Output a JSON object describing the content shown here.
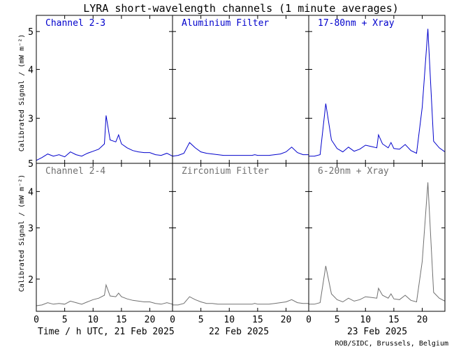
{
  "title": "LYRA short-wavelength channels (1 minute averages)",
  "xlabel": "Time / h UTC, 21 Feb 2025",
  "date_labels": [
    "22 Feb 2025",
    "23 Feb 2025"
  ],
  "ylabel_top": "Calibrated Signal / (mW m⁻²)",
  "ylabel_bottom": "Calibrated Signal / (mW m⁻²)",
  "credit": "ROB/SIDC, Brussels, Belgium",
  "colors": {
    "top": "#0000cc",
    "bottom": "#707070",
    "frame": "#000000"
  },
  "chart_data": {
    "type": "line",
    "x_unit": "h UTC",
    "x_ticks": [
      0,
      5,
      10,
      15,
      20
    ],
    "days": [
      "21 Feb 2025",
      "22 Feb 2025",
      "23 Feb 2025"
    ],
    "top_row": {
      "y_scale": "log",
      "ylim": [
        2.3,
        5.5
      ],
      "y_ticks": [
        3,
        4,
        5
      ],
      "x": [
        0,
        1,
        2,
        3,
        4,
        5,
        6,
        7,
        8,
        9,
        10,
        11,
        12,
        12.3,
        13,
        14,
        14.5,
        15,
        16,
        17,
        18,
        19,
        20,
        21,
        22,
        23,
        24
      ],
      "panels": [
        {
          "label": "Channel 2-3",
          "values": [
            2.34,
            2.38,
            2.43,
            2.4,
            2.42,
            2.39,
            2.46,
            2.42,
            2.4,
            2.44,
            2.47,
            2.5,
            2.58,
            3.05,
            2.64,
            2.61,
            2.72,
            2.58,
            2.52,
            2.48,
            2.46,
            2.45,
            2.45,
            2.42,
            2.41,
            2.44,
            2.4
          ]
        },
        {
          "label": "Aluminium Filter",
          "values": [
            2.4,
            2.41,
            2.44,
            2.6,
            2.52,
            2.46,
            2.44,
            2.43,
            2.42,
            2.41,
            2.41,
            2.41,
            2.41,
            2.41,
            2.41,
            2.41,
            2.42,
            2.41,
            2.41,
            2.41,
            2.42,
            2.43,
            2.46,
            2.53,
            2.45,
            2.42,
            2.42
          ]
        },
        {
          "label": "17-80nm + Xray",
          "values": [
            2.4,
            2.4,
            2.42,
            3.27,
            2.64,
            2.51,
            2.46,
            2.53,
            2.47,
            2.5,
            2.56,
            2.54,
            2.52,
            2.72,
            2.58,
            2.52,
            2.6,
            2.51,
            2.5,
            2.57,
            2.48,
            2.44,
            3.2,
            5.08,
            2.62,
            2.52,
            2.46
          ]
        }
      ]
    },
    "bottom_row": {
      "y_scale": "log",
      "ylim": [
        1.55,
        5.0
      ],
      "y_ticks": [
        2,
        3,
        4,
        5
      ],
      "x": [
        0,
        1,
        2,
        3,
        4,
        5,
        6,
        7,
        8,
        9,
        10,
        11,
        12,
        12.3,
        13,
        14,
        14.5,
        15,
        16,
        17,
        18,
        19,
        20,
        21,
        22,
        23,
        24
      ],
      "panels": [
        {
          "label": "Channel 2-4",
          "values": [
            1.62,
            1.63,
            1.66,
            1.64,
            1.65,
            1.64,
            1.68,
            1.66,
            1.64,
            1.67,
            1.7,
            1.72,
            1.76,
            1.91,
            1.75,
            1.74,
            1.79,
            1.74,
            1.71,
            1.69,
            1.68,
            1.67,
            1.67,
            1.65,
            1.64,
            1.66,
            1.64
          ]
        },
        {
          "label": "Zirconium Filter",
          "values": [
            1.63,
            1.63,
            1.65,
            1.74,
            1.7,
            1.67,
            1.65,
            1.65,
            1.64,
            1.64,
            1.64,
            1.64,
            1.64,
            1.64,
            1.64,
            1.64,
            1.65,
            1.64,
            1.64,
            1.64,
            1.65,
            1.66,
            1.67,
            1.7,
            1.66,
            1.65,
            1.65
          ]
        },
        {
          "label": "6-20nm + Xray",
          "values": [
            1.64,
            1.64,
            1.66,
            2.22,
            1.78,
            1.7,
            1.67,
            1.72,
            1.68,
            1.7,
            1.74,
            1.73,
            1.72,
            1.86,
            1.76,
            1.72,
            1.78,
            1.71,
            1.7,
            1.76,
            1.69,
            1.67,
            2.3,
            4.3,
            1.8,
            1.72,
            1.68
          ]
        }
      ]
    }
  }
}
